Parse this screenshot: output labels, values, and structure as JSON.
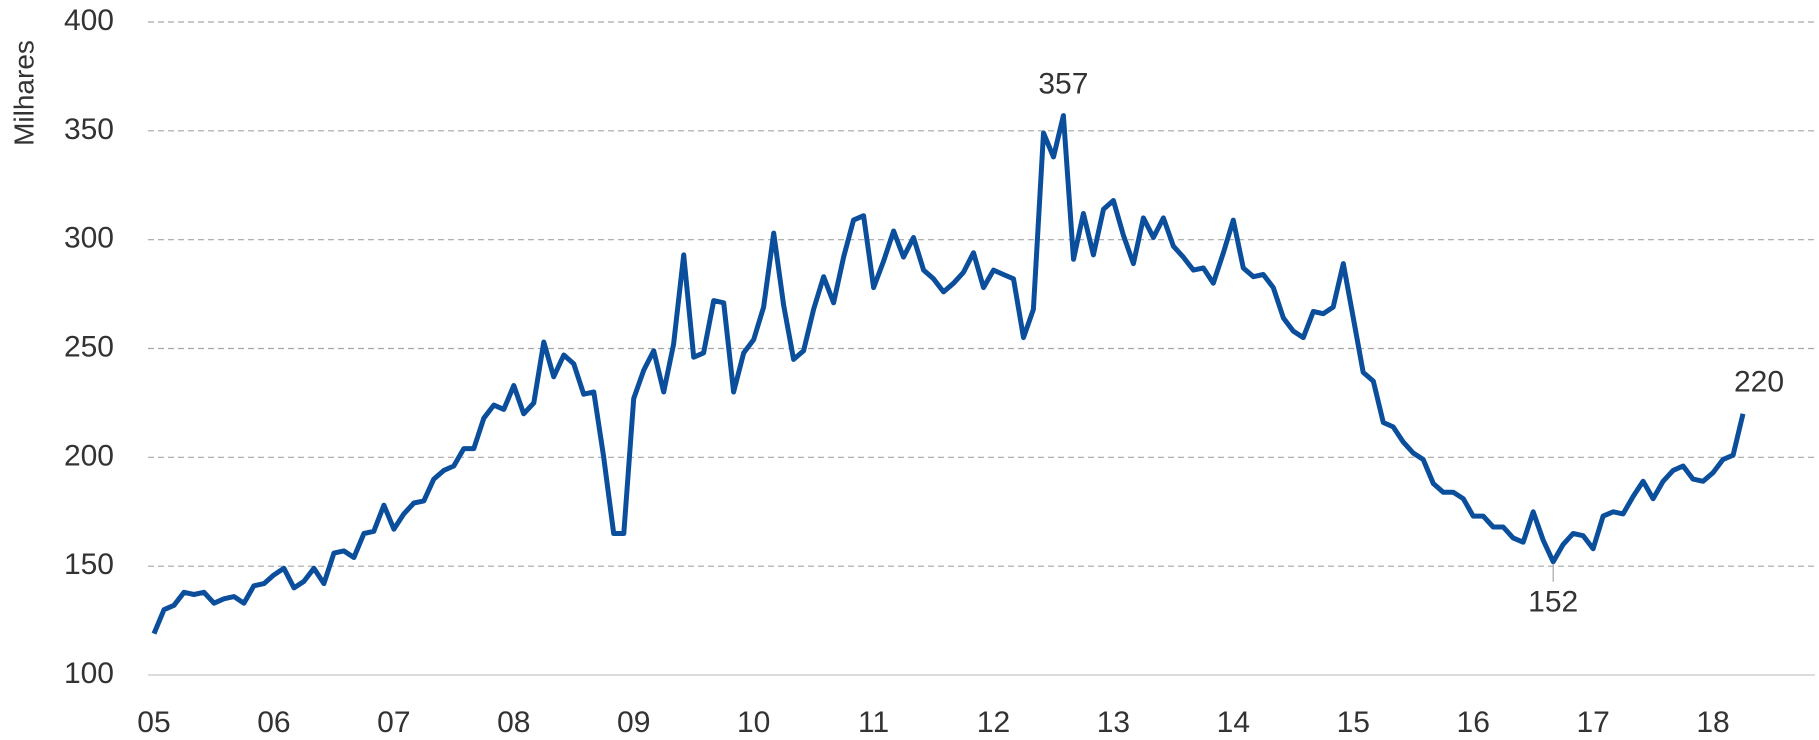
{
  "chart_data": {
    "type": "line",
    "y_label": "Milhares",
    "x": [
      2005,
      2005.083,
      2005.167,
      2005.25,
      2005.333,
      2005.417,
      2005.5,
      2005.583,
      2005.667,
      2005.75,
      2005.833,
      2005.917,
      2006,
      2006.083,
      2006.167,
      2006.25,
      2006.333,
      2006.417,
      2006.5,
      2006.583,
      2006.667,
      2006.75,
      2006.833,
      2006.917,
      2007,
      2007.083,
      2007.167,
      2007.25,
      2007.333,
      2007.417,
      2007.5,
      2007.583,
      2007.667,
      2007.75,
      2007.833,
      2007.917,
      2008,
      2008.083,
      2008.167,
      2008.25,
      2008.333,
      2008.417,
      2008.5,
      2008.583,
      2008.667,
      2008.75,
      2008.833,
      2008.917,
      2009,
      2009.083,
      2009.167,
      2009.25,
      2009.333,
      2009.417,
      2009.5,
      2009.583,
      2009.667,
      2009.75,
      2009.833,
      2009.917,
      2010,
      2010.083,
      2010.167,
      2010.25,
      2010.333,
      2010.417,
      2010.5,
      2010.583,
      2010.667,
      2010.75,
      2010.833,
      2010.917,
      2011,
      2011.083,
      2011.167,
      2011.25,
      2011.333,
      2011.417,
      2011.5,
      2011.583,
      2011.667,
      2011.75,
      2011.833,
      2011.917,
      2012,
      2012.083,
      2012.167,
      2012.25,
      2012.333,
      2012.417,
      2012.5,
      2012.583,
      2012.667,
      2012.75,
      2012.833,
      2012.917,
      2013,
      2013.083,
      2013.167,
      2013.25,
      2013.333,
      2013.417,
      2013.5,
      2013.583,
      2013.667,
      2013.75,
      2013.833,
      2013.917,
      2014,
      2014.083,
      2014.167,
      2014.25,
      2014.333,
      2014.417,
      2014.5,
      2014.583,
      2014.667,
      2014.75,
      2014.833,
      2014.917,
      2015,
      2015.083,
      2015.167,
      2015.25,
      2015.333,
      2015.417,
      2015.5,
      2015.583,
      2015.667,
      2015.75,
      2015.833,
      2015.917,
      2016,
      2016.083,
      2016.167,
      2016.25,
      2016.333,
      2016.417,
      2016.5,
      2016.583,
      2016.667,
      2016.75,
      2016.833,
      2016.917,
      2017,
      2017.083,
      2017.167,
      2017.25,
      2017.333,
      2017.417,
      2017.5,
      2017.583,
      2017.667,
      2017.75,
      2017.833,
      2017.917,
      2018,
      2018.083,
      2018.167,
      2018.25
    ],
    "values": [
      119,
      130,
      132,
      138,
      137,
      138,
      133,
      135,
      136,
      133,
      141,
      142,
      146,
      149,
      140,
      143,
      149,
      142,
      156,
      157,
      154,
      165,
      166,
      178,
      167,
      174,
      179,
      180,
      190,
      194,
      196,
      204,
      204,
      218,
      224,
      222,
      233,
      220,
      225,
      253,
      237,
      247,
      243,
      229,
      230,
      200,
      165,
      165,
      227,
      240,
      249,
      230,
      252,
      293,
      246,
      248,
      272,
      271,
      230,
      248,
      254,
      269,
      303,
      270,
      245,
      249,
      268,
      283,
      271,
      292,
      309,
      311,
      278,
      290,
      304,
      292,
      301,
      286,
      282,
      276,
      280,
      285,
      294,
      278,
      286,
      284,
      282,
      255,
      268,
      349,
      338,
      357,
      291,
      312,
      293,
      314,
      318,
      302,
      289,
      310,
      301,
      310,
      297,
      292,
      286,
      287,
      280,
      294,
      309,
      287,
      283,
      284,
      278,
      264,
      258,
      255,
      267,
      266,
      269,
      289,
      264,
      239,
      235,
      216,
      214,
      207,
      202,
      199,
      188,
      184,
      184,
      181,
      173,
      173,
      168,
      168,
      163,
      161,
      175,
      162,
      152,
      160,
      165,
      164,
      158,
      173,
      175,
      174,
      182,
      189,
      181,
      189,
      194,
      196,
      190,
      189,
      193,
      199,
      201,
      220
    ],
    "value_labels": [
      null,
      null,
      null,
      null,
      null,
      null,
      null,
      null,
      null,
      null,
      null,
      null,
      null,
      null,
      null,
      null,
      null,
      null,
      null,
      null,
      null,
      null,
      null,
      null,
      null,
      null,
      null,
      null,
      null,
      null,
      null,
      null,
      null,
      null,
      null,
      null,
      null,
      null,
      null,
      null,
      null,
      null,
      null,
      null,
      null,
      null,
      null,
      null,
      null,
      null,
      null,
      null,
      null,
      null,
      null,
      null,
      null,
      null,
      null,
      null,
      null,
      null,
      null,
      null,
      null,
      null,
      null,
      null,
      null,
      null,
      null,
      null,
      null,
      null,
      null,
      null,
      null,
      null,
      null,
      null,
      null,
      null,
      null,
      null,
      null,
      null,
      null,
      null,
      null,
      null,
      null,
      "357",
      null,
      null,
      null,
      null,
      null,
      null,
      null,
      null,
      null,
      null,
      null,
      null,
      null,
      null,
      null,
      null,
      null,
      null,
      null,
      null,
      null,
      null,
      null,
      null,
      null,
      null,
      null,
      null,
      null,
      null,
      null,
      null,
      null,
      null,
      null,
      null,
      null,
      null,
      null,
      null,
      null,
      null,
      null,
      null,
      null,
      null,
      null,
      null,
      "152",
      null,
      null,
      null,
      null,
      null,
      null,
      null,
      null,
      null,
      null,
      null,
      null,
      null,
      null,
      null,
      null,
      null,
      null,
      "220"
    ],
    "color": "#0b4f9c",
    "xlim": [
      2004.95,
      2018.85
    ],
    "xticks": [
      {
        "value": 2005,
        "label": "05"
      },
      {
        "value": 2006,
        "label": "06"
      },
      {
        "value": 2007,
        "label": "07"
      },
      {
        "value": 2008,
        "label": "08"
      },
      {
        "value": 2009,
        "label": "09"
      },
      {
        "value": 2010,
        "label": "10"
      },
      {
        "value": 2011,
        "label": "11"
      },
      {
        "value": 2012,
        "label": "12"
      },
      {
        "value": 2013,
        "label": "13"
      },
      {
        "value": 2014,
        "label": "14"
      },
      {
        "value": 2015,
        "label": "15"
      },
      {
        "value": 2016,
        "label": "16"
      },
      {
        "value": 2017,
        "label": "17"
      },
      {
        "value": 2018,
        "label": "18"
      }
    ],
    "ylim": [
      100,
      400
    ],
    "yticks": [
      100,
      150,
      200,
      250,
      300,
      350,
      400
    ],
    "grid": true
  }
}
